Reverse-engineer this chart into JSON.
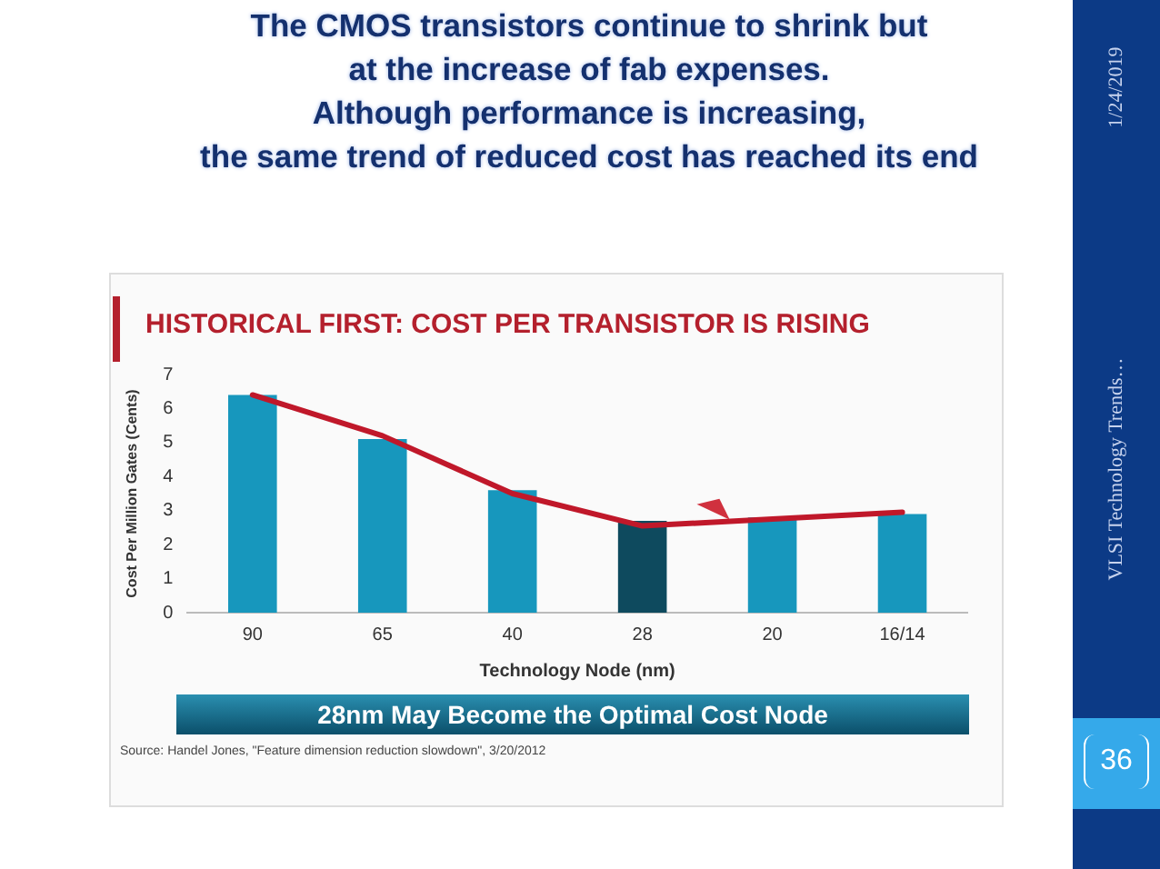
{
  "chart_data": {
    "type": "bar",
    "title": "The CMOS transistors continue to shrink but\nat the increase of fab expenses.\nAlthough performance is increasing,\nthe same trend of reduced cost has reached its end",
    "subtitle": "HISTORICAL FIRST: COST PER TRANSISTOR IS RISING",
    "xlabel": "Technology Node (nm)",
    "ylabel": "Cost Per Million Gates (Cents)",
    "categories": [
      "90",
      "65",
      "40",
      "28",
      "20",
      "16/14"
    ],
    "series": [
      {
        "colors": [
          "#1797bd",
          "#1797bd",
          "#1797bd",
          "#0e4a5e",
          "#1797bd",
          "#1797bd"
        ],
        "values": [
          6.4,
          5.1,
          3.6,
          2.7,
          2.8,
          2.9
        ]
      },
      {
        "type": "line",
        "color": "#c0182a",
        "values": [
          6.4,
          5.2,
          3.5,
          2.55,
          2.75,
          2.95
        ]
      }
    ],
    "ylim": [
      0,
      7
    ],
    "yticks": [
      0,
      1,
      2,
      3,
      4,
      5,
      6,
      7
    ],
    "grid": false,
    "legend": false,
    "annotations": [
      "28nm May Become the Optimal Cost Node",
      "Source: Handel Jones, \"Feature dimension reduction slowdown\", 3/20/2012",
      "1/24/2019",
      "VLSI Technology Trends…",
      "36"
    ]
  }
}
